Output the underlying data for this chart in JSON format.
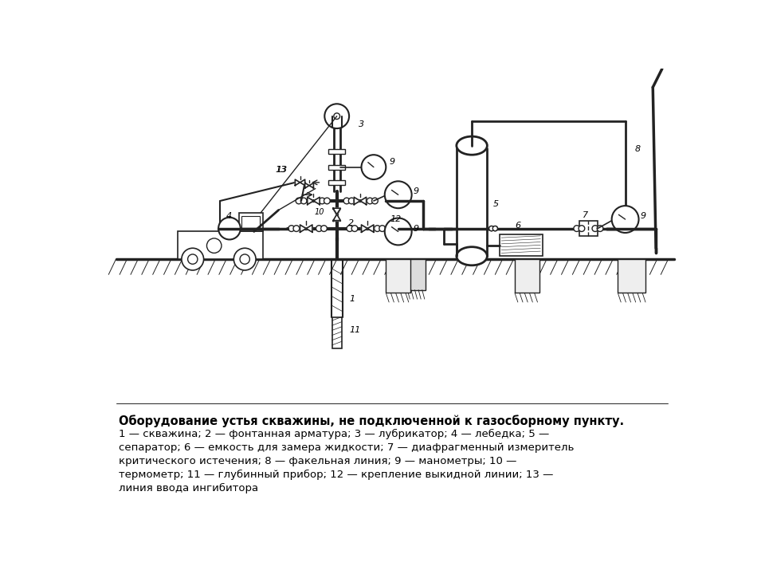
{
  "title_bold": "Оборудование устья скважины, не подключенной к газосборному пункту.",
  "caption_lines": [
    "1 — скважина; 2 — фонтанная арматура; 3 — лубрикатор; 4 — лебедка; 5 —",
    "сепаратор; 6 — емкость для замера жидкости; 7 — диафрагменный измеритель",
    "критического истечения; 8 — факельная линия; 9 — манометры; 10 —",
    "термометр; 11 — глубинный прибор; 12 — крепление выкидной линии; 13 —",
    "линия ввода ингибитора"
  ],
  "bg_color": "#ffffff",
  "line_color": "#222222"
}
